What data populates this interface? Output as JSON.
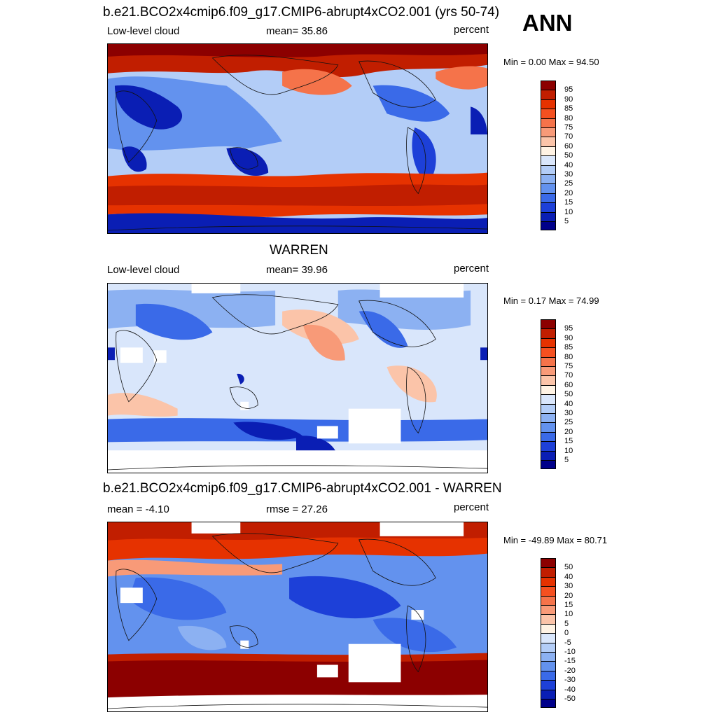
{
  "season": "ANN",
  "panels": [
    {
      "title": "b.e21.BCO2x4cmip6.f09_g17.CMIP6-abrupt4xCO2.001 (yrs 50-74)",
      "left_label": "Low-level cloud",
      "center_label": "mean=  35.86",
      "units": "percent",
      "minmax": "Min =   0.00 Max =  94.50",
      "colorbar": {
        "labels": [
          "95",
          "90",
          "85",
          "80",
          "75",
          "70",
          "60",
          "50",
          "40",
          "30",
          "25",
          "20",
          "15",
          "10",
          "5"
        ],
        "colors": [
          "#8c0000",
          "#c11e00",
          "#e63200",
          "#f55020",
          "#f5734a",
          "#f89a78",
          "#fbc4a9",
          "#fff3e4",
          "#d9e6fb",
          "#b3cdf7",
          "#8cb1f2",
          "#6392ee",
          "#3a6ae8",
          "#1d40d8",
          "#0a1eb4",
          "#00008a"
        ]
      }
    },
    {
      "title": "WARREN",
      "left_label": "Low-level cloud",
      "center_label": "mean=  39.96",
      "units": "percent",
      "minmax": "Min =   0.17 Max =  74.99",
      "colorbar": {
        "labels": [
          "95",
          "90",
          "85",
          "80",
          "75",
          "70",
          "60",
          "50",
          "40",
          "30",
          "25",
          "20",
          "15",
          "10",
          "5"
        ],
        "colors": [
          "#8c0000",
          "#c11e00",
          "#e63200",
          "#f55020",
          "#f5734a",
          "#f89a78",
          "#fbc4a9",
          "#fff3e4",
          "#d9e6fb",
          "#b3cdf7",
          "#8cb1f2",
          "#6392ee",
          "#3a6ae8",
          "#1d40d8",
          "#0a1eb4",
          "#00008a"
        ]
      }
    },
    {
      "title": "b.e21.BCO2x4cmip6.f09_g17.CMIP6-abrupt4xCO2.001 - WARREN",
      "left_label": "mean =  -4.10",
      "center_label": "rmse =  27.26",
      "units": "percent",
      "minmax": "Min = -49.89 Max =  80.71",
      "colorbar": {
        "labels": [
          "50",
          "40",
          "30",
          "20",
          "15",
          "10",
          "5",
          "0",
          "-5",
          "-10",
          "-15",
          "-20",
          "-30",
          "-40",
          "-50"
        ],
        "colors": [
          "#8c0000",
          "#c11e00",
          "#e63200",
          "#f55020",
          "#f5734a",
          "#f89a78",
          "#fbc4a9",
          "#fff3e4",
          "#d9e6fb",
          "#b3cdf7",
          "#8cb1f2",
          "#6392ee",
          "#3a6ae8",
          "#1d40d8",
          "#0a1eb4",
          "#00008a"
        ]
      }
    }
  ]
}
